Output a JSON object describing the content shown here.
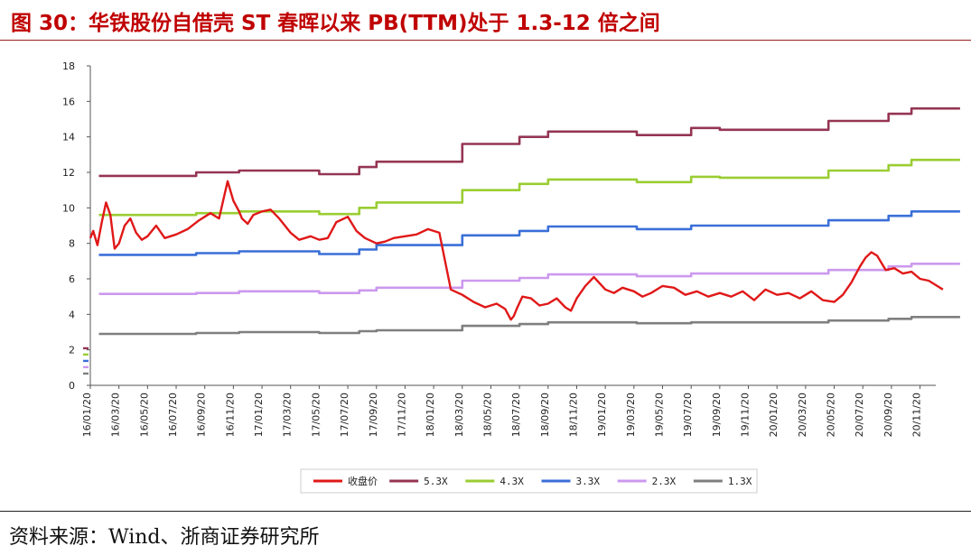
{
  "title": "图 30：华铁股份自借壳 ST 春晖以来 PB(TTM)处于 1.3-12 倍之间",
  "source": "资料来源：Wind、浙商证券研究所",
  "chart_data": {
    "type": "line",
    "title": "图 30：华铁股份自借壳 ST 春晖以来 PB(TTM)处于 1.3-12 倍之间",
    "xlabel": "",
    "ylabel": "",
    "ylim": [
      0,
      18
    ],
    "yticks": [
      "0",
      "2",
      "4",
      "6",
      "8",
      "10",
      "12",
      "14",
      "16",
      "18"
    ],
    "x_tick_labels": [
      "16/01/20",
      "16/03/20",
      "16/05/20",
      "16/07/20",
      "16/09/20",
      "16/11/20",
      "17/01/20",
      "17/03/20",
      "17/05/20",
      "17/07/20",
      "17/09/20",
      "17/11/20",
      "18/01/20",
      "18/03/20",
      "18/05/20",
      "18/07/20",
      "18/09/20",
      "18/11/20",
      "19/01/20",
      "19/03/20",
      "19/05/20",
      "19/07/20",
      "19/09/20",
      "19/11/20",
      "20/01/20",
      "20/03/20",
      "20/05/20",
      "20/07/20",
      "20/09/20",
      "20/11/20"
    ],
    "grid": false,
    "legend_position": "bottom",
    "series": [
      {
        "name": "收盘价",
        "color": "#e01818",
        "x": [
          0,
          0.1,
          0.25,
          0.4,
          0.55,
          0.7,
          0.85,
          1.0,
          1.2,
          1.4,
          1.6,
          1.8,
          2.0,
          2.3,
          2.6,
          3.0,
          3.4,
          3.8,
          4.2,
          4.5,
          4.8,
          5.0,
          5.2,
          5.3,
          5.5,
          5.7,
          6.0,
          6.3,
          6.6,
          7.0,
          7.3,
          7.5,
          7.7,
          8.0,
          8.3,
          8.6,
          9.0,
          9.3,
          9.6,
          10.0,
          10.3,
          10.6,
          11.0,
          11.4,
          11.8,
          12.2,
          12.6,
          13.0,
          13.4,
          13.8,
          14.2,
          14.5,
          14.7,
          14.8,
          14.9,
          15.1,
          15.4,
          15.7,
          16.0,
          16.3,
          16.6,
          16.8,
          17.0,
          17.3,
          17.6,
          18.0,
          18.3,
          18.6,
          19.0,
          19.3,
          19.6,
          20.0,
          20.4,
          20.8,
          21.2,
          21.6,
          22.0,
          22.4,
          22.8,
          23.2,
          23.6,
          24.0,
          24.4,
          24.8,
          25.2,
          25.6,
          26.0,
          26.3,
          26.6,
          26.9,
          27.1,
          27.3,
          27.5,
          27.8,
          28.1,
          28.4,
          28.7,
          29.0,
          29.3,
          29.6,
          29.8
        ],
        "y": [
          8.3,
          8.7,
          7.9,
          9.2,
          10.3,
          9.6,
          7.7,
          8.0,
          9.0,
          9.4,
          8.6,
          8.2,
          8.4,
          9.0,
          8.3,
          8.5,
          8.8,
          9.3,
          9.7,
          9.4,
          11.5,
          10.4,
          9.8,
          9.4,
          9.1,
          9.6,
          9.8,
          9.9,
          9.4,
          8.6,
          8.2,
          8.3,
          8.4,
          8.2,
          8.3,
          9.2,
          9.5,
          8.7,
          8.3,
          8.0,
          8.1,
          8.3,
          8.4,
          8.5,
          8.8,
          8.6,
          5.4,
          5.1,
          4.7,
          4.4,
          4.6,
          4.3,
          3.7,
          3.9,
          4.3,
          5.0,
          4.9,
          4.5,
          4.6,
          4.9,
          4.4,
          4.2,
          4.9,
          5.6,
          6.1,
          5.4,
          5.2,
          5.5,
          5.3,
          5.0,
          5.2,
          5.6,
          5.5,
          5.1,
          5.3,
          5.0,
          5.2,
          5.0,
          5.3,
          4.8,
          5.4,
          5.1,
          5.2,
          4.9,
          5.3,
          4.8,
          4.7,
          5.1,
          5.8,
          6.7,
          7.2,
          7.5,
          7.3,
          6.5,
          6.6,
          6.3,
          6.4,
          6.0,
          5.9,
          5.6,
          5.4
        ]
      },
      {
        "name": "5.3X",
        "color": "#953553",
        "x": [
          0.3,
          3.7,
          3.7,
          5.2,
          5.2,
          8.0,
          8.0,
          9.4,
          9.4,
          10.0,
          10.0,
          13.0,
          13.0,
          15.0,
          15.0,
          16.0,
          16.0,
          19.1,
          19.1,
          21.0,
          21.0,
          22.0,
          22.0,
          25.8,
          25.8,
          27.9,
          27.9,
          28.7,
          28.7,
          30.4
        ],
        "y": [
          11.8,
          11.8,
          12.0,
          12.0,
          12.1,
          12.1,
          11.9,
          11.9,
          12.3,
          12.3,
          12.6,
          12.6,
          13.6,
          13.6,
          14.0,
          14.0,
          14.3,
          14.3,
          14.1,
          14.1,
          14.5,
          14.5,
          14.4,
          14.4,
          14.9,
          14.9,
          15.3,
          15.3,
          15.6,
          15.6
        ]
      },
      {
        "name": "4.3X",
        "color": "#9acd32",
        "x": [
          0.3,
          3.7,
          3.7,
          5.2,
          5.2,
          8.0,
          8.0,
          9.4,
          9.4,
          10.0,
          10.0,
          13.0,
          13.0,
          15.0,
          15.0,
          16.0,
          16.0,
          19.1,
          19.1,
          21.0,
          21.0,
          22.0,
          22.0,
          25.8,
          25.8,
          27.9,
          27.9,
          28.7,
          28.7,
          30.4
        ],
        "y": [
          9.6,
          9.6,
          9.7,
          9.7,
          9.8,
          9.8,
          9.65,
          9.65,
          10.0,
          10.0,
          10.3,
          10.3,
          11.0,
          11.0,
          11.35,
          11.35,
          11.6,
          11.6,
          11.45,
          11.45,
          11.75,
          11.75,
          11.7,
          11.7,
          12.1,
          12.1,
          12.4,
          12.4,
          12.7,
          12.7
        ]
      },
      {
        "name": "3.3X",
        "color": "#3a6fd8",
        "x": [
          0.3,
          3.7,
          3.7,
          5.2,
          5.2,
          8.0,
          8.0,
          9.4,
          9.4,
          10.0,
          10.0,
          13.0,
          13.0,
          15.0,
          15.0,
          16.0,
          16.0,
          19.1,
          19.1,
          21.0,
          21.0,
          22.0,
          22.0,
          25.8,
          25.8,
          27.9,
          27.9,
          28.7,
          28.7,
          30.4
        ],
        "y": [
          7.35,
          7.35,
          7.45,
          7.45,
          7.55,
          7.55,
          7.4,
          7.4,
          7.65,
          7.65,
          7.9,
          7.9,
          8.45,
          8.45,
          8.7,
          8.7,
          8.95,
          8.95,
          8.8,
          8.8,
          9.0,
          9.0,
          9.0,
          9.0,
          9.3,
          9.3,
          9.55,
          9.55,
          9.8,
          9.8
        ]
      },
      {
        "name": "2.3X",
        "color": "#cc99ee",
        "x": [
          0.3,
          3.7,
          3.7,
          5.2,
          5.2,
          8.0,
          8.0,
          9.4,
          9.4,
          10.0,
          10.0,
          13.0,
          13.0,
          15.0,
          15.0,
          16.0,
          16.0,
          19.1,
          19.1,
          21.0,
          21.0,
          22.0,
          22.0,
          25.8,
          25.8,
          27.9,
          27.9,
          28.7,
          28.7,
          30.4
        ],
        "y": [
          5.15,
          5.15,
          5.2,
          5.2,
          5.3,
          5.3,
          5.2,
          5.2,
          5.35,
          5.35,
          5.5,
          5.5,
          5.9,
          5.9,
          6.05,
          6.05,
          6.25,
          6.25,
          6.15,
          6.15,
          6.3,
          6.3,
          6.3,
          6.3,
          6.5,
          6.5,
          6.7,
          6.7,
          6.85,
          6.85
        ]
      },
      {
        "name": "1.3X",
        "color": "#7f7f7f",
        "x": [
          0.3,
          3.7,
          3.7,
          5.2,
          5.2,
          8.0,
          8.0,
          9.4,
          9.4,
          10.0,
          10.0,
          13.0,
          13.0,
          15.0,
          15.0,
          16.0,
          16.0,
          19.1,
          19.1,
          21.0,
          21.0,
          22.0,
          22.0,
          25.8,
          25.8,
          27.9,
          27.9,
          28.7,
          28.7,
          30.4
        ],
        "y": [
          2.9,
          2.9,
          2.95,
          2.95,
          3.0,
          3.0,
          2.95,
          2.95,
          3.05,
          3.05,
          3.1,
          3.1,
          3.35,
          3.35,
          3.45,
          3.45,
          3.55,
          3.55,
          3.5,
          3.5,
          3.55,
          3.55,
          3.55,
          3.55,
          3.65,
          3.65,
          3.75,
          3.75,
          3.85,
          3.85
        ]
      }
    ]
  }
}
